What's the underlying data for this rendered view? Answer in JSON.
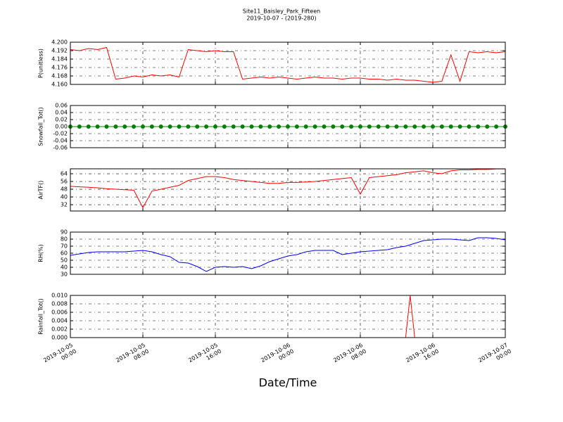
{
  "title": "Site11_Baisley_Park_Fifteen",
  "subtitle": "2019-10-07 - (2019-280)",
  "x_axis": {
    "label": "Date/Time",
    "xlim": [
      "2019-10-05 00:00",
      "2019-10-07 00:00"
    ],
    "xticks": [
      {
        "value": "2019-10-05 00:00",
        "label": "2019-10-05\n00:00"
      },
      {
        "value": "2019-10-05 08:00",
        "label": "2019-10-05\n08:00"
      },
      {
        "value": "2019-10-05 16:00",
        "label": "2019-10-05\n16:00"
      },
      {
        "value": "2019-10-06 00:00",
        "label": "2019-10-06\n00:00"
      },
      {
        "value": "2019-10-06 08:00",
        "label": "2019-10-06\n08:00"
      },
      {
        "value": "2019-10-06 16:00",
        "label": "2019-10-06\n16:00"
      },
      {
        "value": "2019-10-07 00:00",
        "label": "2019-10-07\n00:00"
      }
    ]
  },
  "chart_data": [
    {
      "type": "line",
      "ylabel": "P(unitless)",
      "ylim": [
        4.16,
        4.2
      ],
      "grid": true,
      "yticks": [
        {
          "value": 4.16,
          "label": "4.160"
        },
        4.168,
        4.176,
        4.184,
        4.192,
        {
          "value": 4.2,
          "label": "4.200"
        }
      ],
      "x": [
        "2019-10-05 00:00",
        "2019-10-05 01:00",
        "2019-10-05 02:00",
        "2019-10-05 03:00",
        "2019-10-05 04:00",
        "2019-10-05 05:00",
        "2019-10-05 06:00",
        "2019-10-05 07:00",
        "2019-10-05 08:00",
        "2019-10-05 09:00",
        "2019-10-05 10:00",
        "2019-10-05 11:00",
        "2019-10-05 12:00",
        "2019-10-05 13:00",
        "2019-10-05 14:00",
        "2019-10-05 15:00",
        "2019-10-05 16:00",
        "2019-10-05 17:00",
        "2019-10-05 18:00",
        "2019-10-05 19:00",
        "2019-10-05 20:00",
        "2019-10-05 21:00",
        "2019-10-05 22:00",
        "2019-10-05 23:00",
        "2019-10-06 00:00",
        "2019-10-06 01:00",
        "2019-10-06 02:00",
        "2019-10-06 03:00",
        "2019-10-06 04:00",
        "2019-10-06 05:00",
        "2019-10-06 06:00",
        "2019-10-06 07:00",
        "2019-10-06 08:00",
        "2019-10-06 09:00",
        "2019-10-06 10:00",
        "2019-10-06 11:00",
        "2019-10-06 12:00",
        "2019-10-06 13:00",
        "2019-10-06 14:00",
        "2019-10-06 15:00",
        "2019-10-06 16:00",
        "2019-10-06 17:00",
        "2019-10-06 18:00",
        "2019-10-06 19:00",
        "2019-10-06 20:00",
        "2019-10-06 21:00",
        "2019-10-06 22:00",
        "2019-10-06 23:00",
        "2019-10-07 00:00"
      ],
      "series": [
        {
          "color": "#ff0000",
          "values": [
            4.193,
            4.192,
            4.194,
            4.193,
            4.195,
            4.165,
            4.166,
            4.168,
            4.167,
            4.169,
            4.168,
            4.169,
            4.167,
            4.193,
            4.192,
            4.191,
            4.192,
            4.191,
            4.191,
            4.165,
            4.166,
            4.167,
            4.166,
            4.167,
            4.166,
            4.165,
            4.166,
            4.167,
            4.166,
            4.166,
            4.165,
            4.166,
            4.166,
            4.165,
            4.165,
            4.164,
            4.165,
            4.164,
            4.164,
            4.163,
            4.162,
            4.163,
            4.188,
            4.163,
            4.191,
            4.19,
            4.191,
            4.19,
            4.191
          ]
        }
      ]
    },
    {
      "type": "line",
      "ylabel": "Snowfall_Tot()",
      "ylim": [
        -0.06,
        0.06
      ],
      "grid": true,
      "markers": true,
      "yticks": [
        -0.06,
        -0.04,
        -0.02,
        {
          "value": 0,
          "label": "0.00"
        },
        0.02,
        0.04,
        0.06
      ],
      "x": [
        "2019-10-05 00:00",
        "2019-10-05 01:00",
        "2019-10-05 02:00",
        "2019-10-05 03:00",
        "2019-10-05 04:00",
        "2019-10-05 05:00",
        "2019-10-05 06:00",
        "2019-10-05 07:00",
        "2019-10-05 08:00",
        "2019-10-05 09:00",
        "2019-10-05 10:00",
        "2019-10-05 11:00",
        "2019-10-05 12:00",
        "2019-10-05 13:00",
        "2019-10-05 14:00",
        "2019-10-05 15:00",
        "2019-10-05 16:00",
        "2019-10-05 17:00",
        "2019-10-05 18:00",
        "2019-10-05 19:00",
        "2019-10-05 20:00",
        "2019-10-05 21:00",
        "2019-10-05 22:00",
        "2019-10-05 23:00",
        "2019-10-06 00:00",
        "2019-10-06 01:00",
        "2019-10-06 02:00",
        "2019-10-06 03:00",
        "2019-10-06 04:00",
        "2019-10-06 05:00",
        "2019-10-06 06:00",
        "2019-10-06 07:00",
        "2019-10-06 08:00",
        "2019-10-06 09:00",
        "2019-10-06 10:00",
        "2019-10-06 11:00",
        "2019-10-06 12:00",
        "2019-10-06 13:00",
        "2019-10-06 14:00",
        "2019-10-06 15:00",
        "2019-10-06 16:00",
        "2019-10-06 17:00",
        "2019-10-06 18:00",
        "2019-10-06 19:00",
        "2019-10-06 20:00",
        "2019-10-06 21:00",
        "2019-10-06 22:00",
        "2019-10-06 23:00",
        "2019-10-07 00:00"
      ],
      "series": [
        {
          "color": "#008000",
          "values": [
            0,
            0,
            0,
            0,
            0,
            0,
            0,
            0,
            0,
            0,
            0,
            0,
            0,
            0,
            0,
            0,
            0,
            0,
            0,
            0,
            0,
            0,
            0,
            0,
            0,
            0,
            0,
            0,
            0,
            0,
            0,
            0,
            0,
            0,
            0,
            0,
            0,
            0,
            0,
            0,
            0,
            0,
            0,
            0,
            0,
            0,
            0,
            0,
            0
          ]
        }
      ]
    },
    {
      "type": "line",
      "ylabel": "AirTF()",
      "ylim": [
        25.5,
        69.1
      ],
      "grid": true,
      "yticks": [
        32,
        40,
        48,
        56,
        64
      ],
      "x": [
        "2019-10-05 00:00",
        "2019-10-05 01:00",
        "2019-10-05 02:00",
        "2019-10-05 03:00",
        "2019-10-05 04:00",
        "2019-10-05 05:00",
        "2019-10-05 06:00",
        "2019-10-05 07:00",
        "2019-10-05 08:00",
        "2019-10-05 09:00",
        "2019-10-05 10:00",
        "2019-10-05 11:00",
        "2019-10-05 12:00",
        "2019-10-05 13:00",
        "2019-10-05 14:00",
        "2019-10-05 15:00",
        "2019-10-05 16:00",
        "2019-10-05 17:00",
        "2019-10-05 18:00",
        "2019-10-05 19:00",
        "2019-10-05 20:00",
        "2019-10-05 21:00",
        "2019-10-05 22:00",
        "2019-10-05 23:00",
        "2019-10-06 00:00",
        "2019-10-06 01:00",
        "2019-10-06 02:00",
        "2019-10-06 03:00",
        "2019-10-06 04:00",
        "2019-10-06 05:00",
        "2019-10-06 06:00",
        "2019-10-06 07:00",
        "2019-10-06 08:00",
        "2019-10-06 09:00",
        "2019-10-06 10:00",
        "2019-10-06 11:00",
        "2019-10-06 12:00",
        "2019-10-06 13:00",
        "2019-10-06 14:00",
        "2019-10-06 15:00",
        "2019-10-06 16:00",
        "2019-10-06 17:00",
        "2019-10-06 18:00",
        "2019-10-06 19:00",
        "2019-10-06 20:00",
        "2019-10-06 21:00",
        "2019-10-06 22:00",
        "2019-10-06 23:00",
        "2019-10-07 00:00"
      ],
      "series": [
        {
          "color": "#ff0000",
          "values": [
            51,
            50.5,
            50,
            49.5,
            48.5,
            48,
            47.5,
            47,
            29,
            46,
            48,
            50,
            52,
            57,
            59,
            61,
            61,
            60,
            58,
            57,
            56,
            55,
            54,
            54,
            55,
            55,
            55.5,
            56,
            57,
            58,
            59,
            60,
            43,
            60,
            61,
            62,
            63,
            65,
            66,
            67,
            65,
            64,
            67,
            68,
            68,
            68.5,
            68.5,
            69,
            69
          ]
        }
      ]
    },
    {
      "type": "line",
      "ylabel": "RH(%)",
      "ylim": [
        30,
        90
      ],
      "grid": true,
      "yticks": [
        30,
        40,
        50,
        60,
        70,
        80,
        90
      ],
      "x": [
        "2019-10-05 00:00",
        "2019-10-05 01:00",
        "2019-10-05 02:00",
        "2019-10-05 03:00",
        "2019-10-05 04:00",
        "2019-10-05 05:00",
        "2019-10-05 06:00",
        "2019-10-05 07:00",
        "2019-10-05 08:00",
        "2019-10-05 09:00",
        "2019-10-05 10:00",
        "2019-10-05 11:00",
        "2019-10-05 12:00",
        "2019-10-05 13:00",
        "2019-10-05 14:00",
        "2019-10-05 15:00",
        "2019-10-05 16:00",
        "2019-10-05 17:00",
        "2019-10-05 18:00",
        "2019-10-05 19:00",
        "2019-10-05 20:00",
        "2019-10-05 21:00",
        "2019-10-05 22:00",
        "2019-10-05 23:00",
        "2019-10-06 00:00",
        "2019-10-06 01:00",
        "2019-10-06 02:00",
        "2019-10-06 03:00",
        "2019-10-06 04:00",
        "2019-10-06 05:00",
        "2019-10-06 06:00",
        "2019-10-06 07:00",
        "2019-10-06 08:00",
        "2019-10-06 09:00",
        "2019-10-06 10:00",
        "2019-10-06 11:00",
        "2019-10-06 12:00",
        "2019-10-06 13:00",
        "2019-10-06 14:00",
        "2019-10-06 15:00",
        "2019-10-06 16:00",
        "2019-10-06 17:00",
        "2019-10-06 18:00",
        "2019-10-06 19:00",
        "2019-10-06 20:00",
        "2019-10-06 21:00",
        "2019-10-06 22:00",
        "2019-10-06 23:00",
        "2019-10-07 00:00"
      ],
      "series": [
        {
          "color": "#0000ff",
          "values": [
            57,
            59,
            61,
            62,
            62,
            62,
            62,
            63,
            64,
            62,
            58,
            55,
            47,
            46,
            41,
            34,
            40,
            41,
            40,
            41,
            38,
            42,
            48,
            52,
            56,
            58,
            62,
            64,
            64,
            64,
            58,
            60,
            62,
            63,
            64,
            65,
            68,
            70,
            74,
            78,
            79,
            80,
            80,
            79,
            78,
            82,
            82,
            81,
            79
          ]
        }
      ]
    },
    {
      "type": "line",
      "ylabel": "Rainfall_Tot()",
      "ylim": [
        0,
        0.01
      ],
      "grid": true,
      "yticks": [
        {
          "value": 0,
          "label": "0.000"
        },
        0.002,
        0.004,
        0.006,
        0.008,
        {
          "value": 0.01,
          "label": "0.010"
        }
      ],
      "x": [
        "2019-10-05 00:00",
        "2019-10-06 13:00",
        "2019-10-06 13:30",
        "2019-10-06 14:00",
        "2019-10-07 00:00"
      ],
      "series": [
        {
          "color": "#ff0000",
          "values": [
            0,
            0,
            0.01,
            0,
            0
          ]
        }
      ]
    }
  ]
}
